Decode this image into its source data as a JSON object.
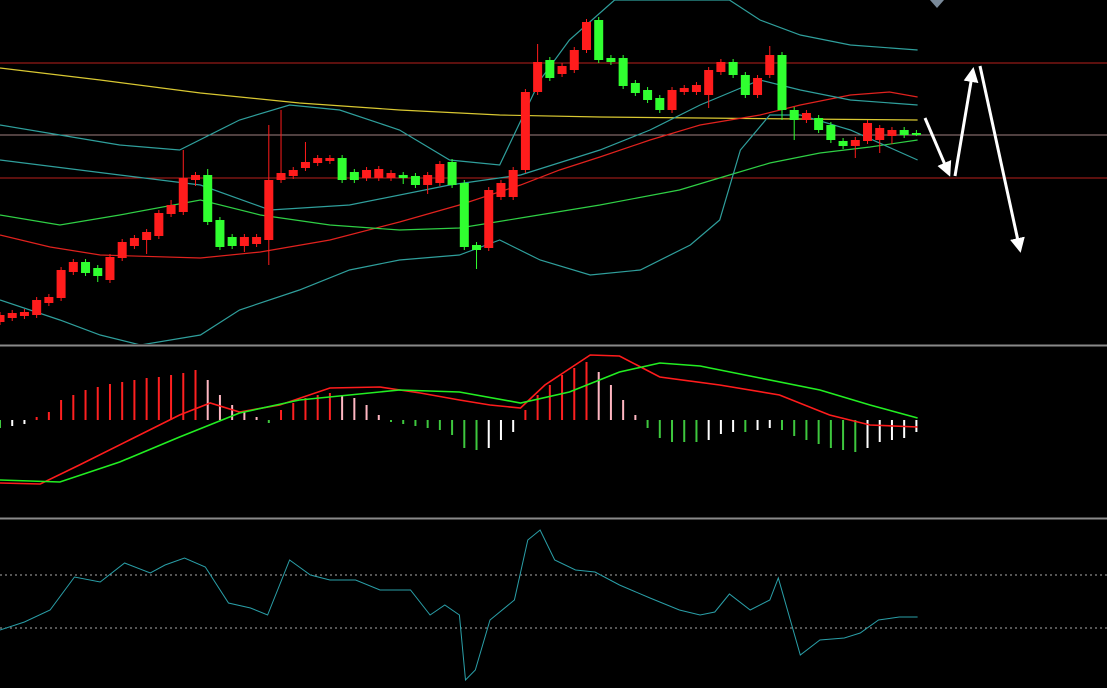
{
  "chart_data": [
    {
      "type": "candlestick",
      "xlim": [
        0,
        90.6
      ],
      "ylim": [
        0,
        344
      ],
      "up_color": "#ff1c1c",
      "down_color": "#30ff30",
      "open": [
        22,
        26,
        28,
        29,
        41,
        46,
        72,
        82,
        76,
        64,
        86,
        98,
        104,
        108,
        130,
        132,
        164,
        169,
        124,
        107,
        98,
        100,
        104,
        164,
        168,
        176,
        181,
        183,
        186,
        172,
        166,
        166,
        166,
        169,
        168,
        159,
        161,
        182,
        161,
        99,
        96,
        147,
        147,
        174,
        252,
        284,
        270,
        274,
        294,
        324,
        286,
        286,
        261,
        254,
        246,
        234,
        252,
        252,
        249,
        272,
        282,
        269,
        249,
        269,
        289,
        234,
        224,
        226,
        219,
        203,
        198,
        203,
        204,
        208,
        214,
        211
      ],
      "high": [
        32,
        34,
        35,
        47,
        50,
        77,
        85,
        85,
        79,
        90,
        105,
        109,
        115,
        134,
        144,
        194,
        172,
        175,
        127,
        110,
        110,
        110,
        219,
        234,
        177,
        202,
        189,
        189,
        189,
        175,
        177,
        178,
        174,
        172,
        171,
        172,
        183,
        185,
        164,
        102,
        157,
        164,
        177,
        255,
        300,
        287,
        281,
        297,
        325,
        327,
        289,
        289,
        264,
        257,
        249,
        257,
        259,
        262,
        277,
        285,
        285,
        272,
        269,
        298,
        292,
        237,
        234,
        229,
        222,
        206,
        207,
        224,
        219,
        217,
        217,
        214
      ],
      "low": [
        19,
        23,
        25,
        26,
        38,
        43,
        69,
        68,
        62,
        61,
        83,
        95,
        90,
        105,
        127,
        129,
        158,
        119,
        94,
        95,
        92,
        97,
        79,
        161,
        165,
        173,
        178,
        180,
        161,
        161,
        163,
        163,
        163,
        160,
        156,
        150,
        158,
        156,
        94,
        75,
        93,
        144,
        144,
        171,
        249,
        263,
        267,
        271,
        291,
        281,
        279,
        255,
        248,
        241,
        231,
        231,
        249,
        249,
        236,
        269,
        266,
        246,
        246,
        266,
        224,
        204,
        221,
        211,
        201,
        195,
        186,
        200,
        191,
        200,
        206,
        208
      ],
      "close": [
        29,
        31,
        32,
        44,
        47,
        74,
        82,
        71,
        68,
        87,
        102,
        106,
        112,
        131,
        139,
        166,
        169,
        122,
        97,
        98,
        107,
        107,
        164,
        171,
        174,
        182,
        186,
        186,
        164,
        164,
        174,
        175,
        171,
        166,
        159,
        169,
        180,
        159,
        97,
        94,
        154,
        161,
        174,
        252,
        282,
        266,
        278,
        294,
        322,
        284,
        282,
        258,
        251,
        244,
        234,
        254,
        256,
        259,
        274,
        282,
        269,
        249,
        266,
        289,
        234,
        224,
        231,
        214,
        204,
        198,
        204,
        221,
        216,
        214,
        209,
        209
      ],
      "overlays": [
        {
          "color": "#d9c832",
          "x": [
            0,
            8.2,
            16.4,
            24.5,
            32.7,
            40.9,
            49.1,
            57.3,
            65.5,
            75.1
          ],
          "values": [
            276,
            264,
            251,
            241,
            234,
            229,
            227,
            226,
            225,
            224
          ]
        },
        {
          "color": "#e0221e",
          "x": [
            0,
            4.1,
            8.2,
            16.4,
            21.3,
            27,
            32.7,
            37.6,
            42.6,
            45.8,
            49.1,
            53.2,
            57.3,
            62.2,
            65.5,
            69.6,
            72.8,
            75.1
          ],
          "values": [
            109,
            97,
            89,
            86,
            92,
            104,
            122,
            139,
            159,
            174,
            187,
            204,
            219,
            229,
            239,
            249,
            252,
            247
          ]
        },
        {
          "color": "#2fcf45",
          "x": [
            0,
            4.9,
            9.8,
            16.4,
            21.3,
            27,
            32.7,
            37.6,
            42.6,
            49.1,
            55.6,
            59.7,
            63,
            67.1,
            71.2,
            75.1
          ],
          "values": [
            129,
            119,
            129,
            144,
            129,
            119,
            114,
            116,
            126,
            139,
            154,
            169,
            181,
            191,
            197,
            204
          ]
        },
        {
          "color": "#2f9f9c",
          "x": [
            0,
            4.9,
            9.8,
            14.7,
            19.6,
            23.7,
            27.8,
            32.7,
            36.8,
            40.9,
            44.2,
            46.6,
            50.3,
            59.7,
            62.2,
            65.5,
            69.6,
            75.1
          ],
          "values": [
            219,
            209,
            199,
            194,
            224,
            239,
            234,
            214,
            184,
            179,
            264,
            304,
            344,
            344,
            324,
            309,
            299,
            294
          ]
        },
        {
          "color": "#2f9f9c",
          "x": [
            0,
            9.8,
            16.4,
            22.1,
            28.6,
            36.8,
            42.6,
            49.1,
            53.2,
            57.3,
            62.2,
            65.5,
            69.6,
            75.1
          ],
          "values": [
            184,
            169,
            159,
            134,
            139,
            159,
            169,
            194,
            214,
            239,
            264,
            254,
            244,
            239
          ]
        },
        {
          "color": "#2f9f9c",
          "x": [
            0,
            4.9,
            8.2,
            11.5,
            16.4,
            19.6,
            24.5,
            28.6,
            32.7,
            37.6,
            40.9,
            44.2,
            48.3,
            52.4,
            56.5,
            58.9,
            60.6,
            63,
            65.5,
            69.6,
            75.1
          ],
          "values": [
            44,
            24,
            9,
            -1,
            9,
            34,
            54,
            74,
            84,
            89,
            104,
            84,
            69,
            74,
            99,
            124,
            194,
            229,
            229,
            214,
            184
          ]
        }
      ],
      "levels": [
        {
          "value": 281,
          "color": "#b8201c"
        },
        {
          "value": 209,
          "color": "#a08080"
        },
        {
          "value": 166,
          "color": "#b8201c"
        }
      ]
    },
    {
      "type": "bar",
      "xlim": [
        0,
        90.6
      ],
      "ylim": [
        -97,
        73
      ],
      "values": [
        -8,
        -6,
        -4,
        3,
        8,
        20,
        25,
        30,
        33,
        36,
        38,
        40,
        42,
        43,
        45,
        47,
        50,
        40,
        25,
        15,
        8,
        3,
        -3,
        10,
        17,
        22,
        25,
        27,
        25,
        22,
        15,
        5,
        -2,
        -4,
        -6,
        -8,
        -10,
        -15,
        -28,
        -30,
        -28,
        -20,
        -12,
        10,
        25,
        35,
        45,
        52,
        58,
        48,
        35,
        20,
        5,
        -8,
        -18,
        -22,
        -22,
        -22,
        -20,
        -14,
        -12,
        -12,
        -10,
        -8,
        -10,
        -16,
        -20,
        -24,
        -28,
        -30,
        -32,
        -28,
        -22,
        -20,
        -18,
        -12
      ],
      "colors": {
        "rising_positive": "#ff2020",
        "falling_positive": "#ffb6c1",
        "falling_negative": "#3ec83e",
        "rising_negative": "#ffffff"
      },
      "series": [
        {
          "color": "#ff1c1c",
          "x": [
            0,
            3.3,
            6.5,
            10.6,
            14.7,
            17.2,
            19.6,
            22.9,
            27,
            31.1,
            34.4,
            37.6,
            40.1,
            42.6,
            44.6,
            48.3,
            50.7,
            54,
            58.9,
            63.8,
            67.9,
            71.2,
            75.1
          ],
          "values": [
            -63,
            -64,
            -45,
            -20,
            5,
            17,
            8,
            15,
            32,
            33,
            27,
            20,
            15,
            12,
            35,
            65,
            64,
            43,
            35,
            25,
            5,
            -5,
            -7
          ]
        },
        {
          "color": "#22ee22",
          "x": [
            0,
            4.9,
            9.8,
            14.7,
            19.6,
            24.5,
            32.7,
            37.6,
            42.6,
            46.6,
            50.7,
            54,
            57.3,
            62.2,
            67.1,
            71.2,
            75.1
          ],
          "values": [
            -60,
            -62,
            -42,
            -17,
            7,
            20,
            30,
            28,
            17,
            28,
            48,
            57,
            54,
            42,
            30,
            15,
            2
          ]
        }
      ]
    },
    {
      "type": "line",
      "xlim": [
        0,
        90.6
      ],
      "ylim": [
        -88,
        80
      ],
      "color": "#2a9fa8",
      "x": [
        0,
        2,
        4.1,
        6.1,
        8.2,
        10.2,
        12.3,
        13.5,
        15.1,
        16.8,
        18.7,
        20.5,
        21.9,
        23.7,
        25.4,
        27,
        29.1,
        31.1,
        33.6,
        35.2,
        36.4,
        37.6,
        38.1,
        38.9,
        40.1,
        42.1,
        43.2,
        44.2,
        45.4,
        47.1,
        48.7,
        50.7,
        53.2,
        55.6,
        57.3,
        58.5,
        59.7,
        61.4,
        63,
        63.7,
        65.5,
        67.1,
        69.1,
        70.4,
        71.9,
        73.6,
        75.1
      ],
      "values": [
        -30,
        -22,
        -10,
        23,
        18,
        37,
        27,
        35,
        42,
        33,
        -3,
        -8,
        -15,
        40,
        25,
        20,
        20,
        10,
        10,
        -15,
        -5,
        -15,
        -80,
        -70,
        -20,
        0,
        60,
        70,
        40,
        30,
        28,
        15,
        2,
        -10,
        -15,
        -12,
        6,
        -10,
        0,
        22,
        -55,
        -40,
        -38,
        -33,
        -20,
        -17,
        -17
      ],
      "levels": [
        {
          "value": 25
        },
        {
          "value": -28
        }
      ],
      "level_color": "#aaaaaa"
    }
  ]
}
